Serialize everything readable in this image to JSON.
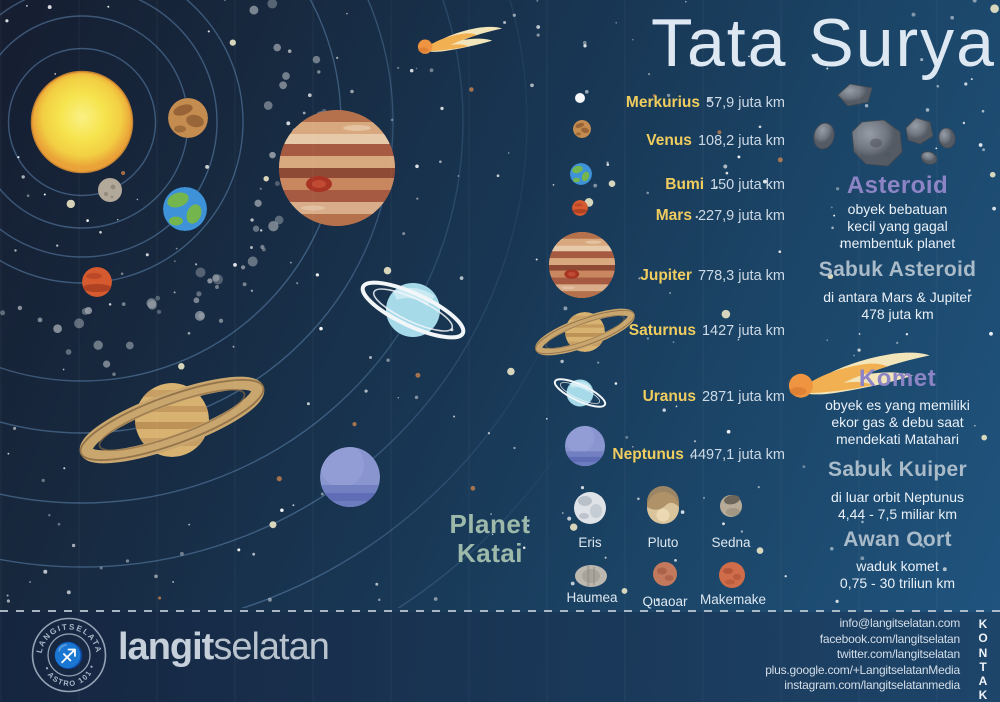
{
  "title": "Tata Surya",
  "planet_list": [
    {
      "name": "Merkurius",
      "distance": "57,9 juta km"
    },
    {
      "name": "Venus",
      "distance": "108,2 juta km"
    },
    {
      "name": "Bumi",
      "distance": "150 juta km"
    },
    {
      "name": "Mars",
      "distance": "227,9 juta km"
    },
    {
      "name": "Jupiter",
      "distance": "778,3 juta km"
    },
    {
      "name": "Saturnus",
      "distance": "1427 juta km"
    },
    {
      "name": "Uranus",
      "distance": "2871 juta km"
    },
    {
      "name": "Neptunus",
      "distance": "4497,1 juta km"
    }
  ],
  "dwarf": {
    "heading_line1": "Planet",
    "heading_line2": "Katai",
    "row1": [
      "Eris",
      "Pluto",
      "Sedna"
    ],
    "row2": [
      "Haumea",
      "Quaoar",
      "Makemake"
    ]
  },
  "aside": {
    "asteroid": {
      "heading": "Asteroid",
      "line1": "obyek bebatuan",
      "line2": "kecil yang gagal",
      "line3": "membentuk planet"
    },
    "sabuk_asteroid": {
      "heading": "Sabuk Asteroid",
      "line1": "di antara Mars & Jupiter",
      "line2": "478 juta km"
    },
    "komet": {
      "heading": "Komet",
      "line1": "obyek es yang memiliki",
      "line2": "ekor gas & debu saat",
      "line3": "mendekati Matahari"
    },
    "sabuk_kuiper": {
      "heading": "Sabuk Kuiper",
      "line1": "di luar orbit Neptunus",
      "line2": "4,44 - 7,5 miliar km"
    },
    "awan_oort": {
      "heading": "Awan Oort",
      "line1": "waduk komet",
      "line2": "0,75 - 30 triliun km"
    }
  },
  "footer": {
    "brand_bold": "langit",
    "brand_light": "selatan",
    "stamp_top": "LANGITSELATAN",
    "stamp_bottom": "• ASTRO 101 •",
    "kontak_label": "KONTAK",
    "contacts": {
      "email": "info@langitselatan.com",
      "facebook": "facebook.com/langitselatan",
      "twitter": "twitter.com/langitselatan",
      "gplus": "plus.google.com/+LangitselatanMedia",
      "instagram": "instagram.com/langitselatanmedia"
    }
  },
  "colors": {
    "accent_yellow": "#f0cd5e",
    "accent_purple": "#8d84c6",
    "heading_gray": "#a9bac8",
    "dwarf_green": "#9cb9aa",
    "bg_dark": "#161d30",
    "bg_light": "#205580"
  }
}
